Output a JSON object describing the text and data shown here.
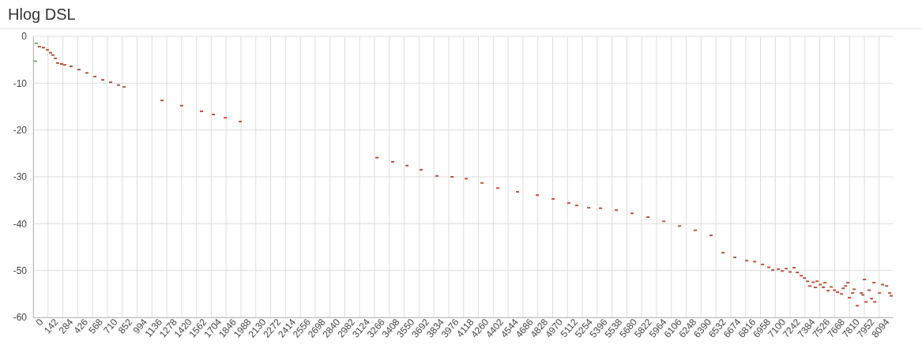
{
  "chart_data": {
    "type": "scatter",
    "title": "Hlog DSL",
    "marker": "square",
    "grid": true,
    "xlim": [
      0,
      8224
    ],
    "ylim": [
      -60,
      0
    ],
    "xticks": [
      0,
      142,
      284,
      426,
      568,
      710,
      852,
      994,
      1136,
      1278,
      1420,
      1562,
      1704,
      1846,
      1988,
      2130,
      2272,
      2414,
      2556,
      2698,
      2840,
      2982,
      3124,
      3266,
      3408,
      3550,
      3692,
      3834,
      3976,
      4118,
      4260,
      4402,
      4544,
      4686,
      4828,
      4970,
      5112,
      5254,
      5396,
      5538,
      5680,
      5822,
      5964,
      6106,
      6248,
      6390,
      6532,
      6674,
      6816,
      6958,
      7100,
      7242,
      7384,
      7526,
      7668,
      7810,
      7952,
      8094
    ],
    "yticks": [
      0,
      -10,
      -20,
      -30,
      -40,
      -50,
      -60
    ],
    "series": [
      {
        "color": "#b5553f",
        "x": [
          60,
          98,
          136,
          166,
          189,
          212,
          234,
          272,
          302,
          363,
          438,
          514,
          590,
          665,
          741,
          816,
          869,
          1232,
          1421,
          1610,
          1724,
          1837,
          1981,
          3289,
          3440,
          3576,
          3712,
          3863,
          4007,
          4143,
          4294,
          4445,
          4634,
          4823,
          4974,
          5125,
          5201,
          5315,
          5428,
          5579,
          5730,
          5882,
          6033,
          6184,
          6335,
          6486,
          6600,
          6713,
          6827,
          6903,
          6978,
          7038,
          7076,
          7129,
          7167,
          7205,
          7242,
          7280,
          7311,
          7348,
          7379,
          7409,
          7431,
          7462,
          7484,
          7500,
          7530,
          7560,
          7575,
          7605,
          7636,
          7666,
          7696,
          7734,
          7749,
          7772,
          7794,
          7809,
          7840,
          7855,
          7885,
          7923,
          7938,
          7953,
          7968,
          7998,
          8021,
          8044,
          8051,
          8097,
          8127,
          8165,
          8195,
          8210
        ],
        "values": [
          -2.2,
          -2.4,
          -2.9,
          -3.5,
          -4.0,
          -4.7,
          -5.7,
          -5.9,
          -6.1,
          -6.4,
          -7.1,
          -7.8,
          -8.6,
          -9.3,
          -9.8,
          -10.4,
          -10.8,
          -13.7,
          -14.8,
          -16.0,
          -16.7,
          -17.4,
          -18.2,
          -25.9,
          -26.8,
          -27.6,
          -28.5,
          -29.8,
          -30.0,
          -30.4,
          -31.3,
          -32.4,
          -33.2,
          -33.9,
          -34.7,
          -35.6,
          -36.1,
          -36.6,
          -36.7,
          -37.1,
          -37.8,
          -38.6,
          -39.5,
          -40.5,
          -41.4,
          -42.5,
          -46.2,
          -47.2,
          -47.9,
          -48.1,
          -48.7,
          -49.3,
          -49.9,
          -49.7,
          -50.1,
          -49.6,
          -50.3,
          -49.4,
          -50.4,
          -51.1,
          -51.6,
          -52.3,
          -53.3,
          -52.5,
          -53.6,
          -52.3,
          -53.0,
          -53.6,
          -52.6,
          -54.3,
          -53.5,
          -54.2,
          -54.6,
          -55.0,
          -53.8,
          -53.3,
          -52.6,
          -55.8,
          -54.8,
          -54.0,
          -57.5,
          -54.8,
          -55.2,
          -51.9,
          -56.7,
          -54.2,
          -56.0,
          -52.6,
          -56.7,
          -54.8,
          -53.0,
          -53.3,
          -54.8,
          -55.4
        ]
      },
      {
        "color": "#6aa86a",
        "x": [
          28,
          20
        ],
        "values": [
          -1.5,
          -5.3
        ]
      }
    ]
  }
}
